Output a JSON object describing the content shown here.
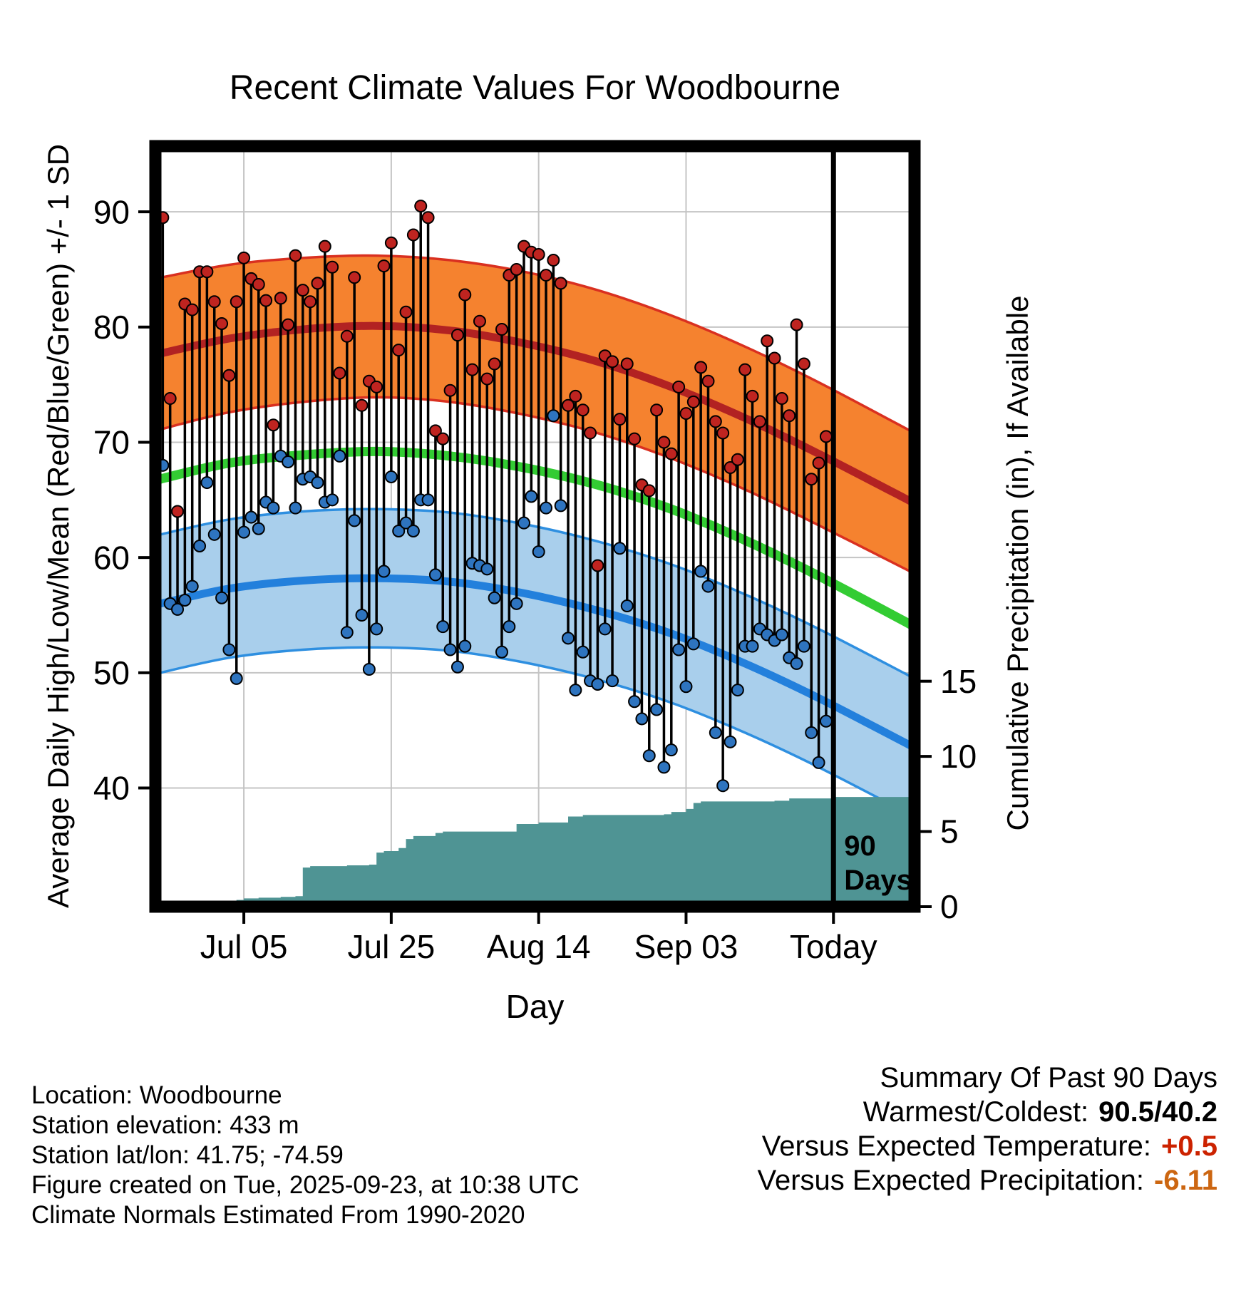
{
  "title": "Recent Climate Values For Woodbourne",
  "y_axis_label": "Average Daily High/Low/Mean (Red/Blue/Green) +/- 1 SD",
  "y2_axis_label": "Cumulative Precipitation (in), If Available",
  "x_axis_label": "Day",
  "footer": {
    "lines": [
      "Location: Woodbourne",
      "Station elevation: 433 m",
      "Station lat/lon: 41.75; -74.59",
      "Figure created on Tue, 2025-09-23, at 10:38 UTC",
      "Climate Normals Estimated From 1990-2020"
    ]
  },
  "summary": {
    "heading": "Summary Of Past 90 Days",
    "rows": [
      {
        "label": "Warmest/Coldest:",
        "value": "90.5/40.2",
        "color": "#000000"
      },
      {
        "label": "Versus Expected Temperature:",
        "value": "+0.5",
        "color": "#cc2200"
      },
      {
        "label": "Versus Expected Precipitation:",
        "value": "-6.11",
        "color": "#cc6611"
      }
    ]
  },
  "chart_data": {
    "type": "line",
    "title": "Recent Climate Values For Woodbourne",
    "xlabel": "Day",
    "ylabel": "Average Daily High/Low/Mean (Red/Blue/Green) +/- 1 SD",
    "y2label": "Cumulative Precipitation (in), If Available",
    "temp_axis": {
      "min": 29.7,
      "max": 95.7,
      "ticks": [
        40,
        50,
        60,
        70,
        80,
        90
      ]
    },
    "precip_axis": {
      "min": 0,
      "max": 50.6,
      "ticks": [
        0,
        5,
        10,
        15
      ]
    },
    "day_axis": {
      "max_day": 103,
      "today_day": 92,
      "ticks": [
        {
          "day": 12,
          "label": "Jul 05"
        },
        {
          "day": 32,
          "label": "Jul 25"
        },
        {
          "day": 52,
          "label": "Aug 14"
        },
        {
          "day": 72,
          "label": "Sep 03"
        },
        {
          "day": 92,
          "label": "Today"
        }
      ]
    },
    "annotation": {
      "lines": [
        "90",
        "Days"
      ]
    },
    "normals": {
      "days": [
        0,
        10,
        20,
        30,
        40,
        50,
        60,
        70,
        80,
        90,
        103
      ],
      "high_upper": [
        84.2,
        85.4,
        86.0,
        86.2,
        85.8,
        84.8,
        83.2,
        81.0,
        78.3,
        75.2,
        70.8
      ],
      "high_mean": [
        77.6,
        79.0,
        79.8,
        80.1,
        79.7,
        78.6,
        77.0,
        74.8,
        72.1,
        69.0,
        64.7
      ],
      "high_lower": [
        71.0,
        72.6,
        73.5,
        73.9,
        73.5,
        72.4,
        70.8,
        68.6,
        65.9,
        62.8,
        58.6
      ],
      "mean": [
        66.7,
        68.2,
        68.9,
        69.2,
        68.8,
        67.8,
        66.3,
        64.2,
        61.5,
        58.4,
        54.0
      ],
      "low_upper": [
        61.9,
        63.3,
        64.0,
        64.2,
        63.9,
        62.9,
        61.4,
        59.4,
        56.8,
        53.8,
        49.5
      ],
      "low_mean": [
        55.9,
        57.3,
        58.0,
        58.2,
        57.9,
        56.9,
        55.4,
        53.4,
        50.8,
        47.8,
        43.5
      ],
      "low_lower": [
        49.9,
        51.3,
        52.0,
        52.2,
        51.9,
        50.9,
        49.4,
        47.4,
        44.8,
        41.8,
        37.5
      ]
    },
    "daily": {
      "columns": [
        "date",
        "high",
        "low"
      ],
      "start_day": 1,
      "points": [
        [
          "Jun 24",
          89.5,
          68.0
        ],
        [
          "Jun 25",
          73.8,
          56.0
        ],
        [
          "Jun 26",
          64.0,
          55.5
        ],
        [
          "Jun 27",
          82.0,
          56.3
        ],
        [
          "Jun 28",
          81.5,
          57.5
        ],
        [
          "Jun 29",
          84.8,
          61.0
        ],
        [
          "Jun 30",
          84.8,
          66.5
        ],
        [
          "Jul 01",
          82.2,
          62.0
        ],
        [
          "Jul 02",
          80.3,
          56.5
        ],
        [
          "Jul 03",
          75.8,
          52.0
        ],
        [
          "Jul 04",
          82.2,
          49.5
        ],
        [
          "Jul 05",
          86.0,
          62.2
        ],
        [
          "Jul 06",
          84.2,
          63.5
        ],
        [
          "Jul 07",
          83.7,
          62.5
        ],
        [
          "Jul 08",
          82.3,
          64.8
        ],
        [
          "Jul 09",
          71.5,
          64.3
        ],
        [
          "Jul 10",
          82.5,
          68.8
        ],
        [
          "Jul 11",
          80.2,
          68.3
        ],
        [
          "Jul 12",
          86.2,
          64.3
        ],
        [
          "Jul 13",
          83.2,
          66.8
        ],
        [
          "Jul 14",
          82.2,
          67.0
        ],
        [
          "Jul 15",
          83.8,
          66.5
        ],
        [
          "Jul 16",
          87.0,
          64.8
        ],
        [
          "Jul 17",
          85.2,
          65.0
        ],
        [
          "Jul 18",
          76.0,
          68.8
        ],
        [
          "Jul 19",
          79.2,
          53.5
        ],
        [
          "Jul 20",
          84.3,
          63.2
        ],
        [
          "Jul 21",
          73.2,
          55.0
        ],
        [
          "Jul 22",
          75.3,
          50.3
        ],
        [
          "Jul 23",
          74.8,
          53.8
        ],
        [
          "Jul 24",
          85.3,
          58.8
        ],
        [
          "Jul 25",
          87.3,
          67.0
        ],
        [
          "Jul 26",
          78.0,
          62.3
        ],
        [
          "Jul 27",
          81.3,
          63.0
        ],
        [
          "Jul 28",
          88.0,
          62.3
        ],
        [
          "Jul 29",
          90.5,
          65.0
        ],
        [
          "Jul 30",
          89.5,
          65.0
        ],
        [
          "Jul 31",
          71.0,
          58.5
        ],
        [
          "Aug 01",
          70.3,
          54.0
        ],
        [
          "Aug 02",
          74.5,
          52.0
        ],
        [
          "Aug 03",
          79.3,
          50.5
        ],
        [
          "Aug 04",
          82.8,
          52.3
        ],
        [
          "Aug 05",
          76.3,
          59.5
        ],
        [
          "Aug 06",
          80.5,
          59.3
        ],
        [
          "Aug 07",
          75.5,
          59.0
        ],
        [
          "Aug 08",
          76.8,
          56.5
        ],
        [
          "Aug 09",
          79.8,
          51.8
        ],
        [
          "Aug 10",
          84.5,
          54.0
        ],
        [
          "Aug 11",
          85.0,
          56.0
        ],
        [
          "Aug 12",
          87.0,
          63.0
        ],
        [
          "Aug 13",
          86.5,
          65.3
        ],
        [
          "Aug 14",
          86.3,
          60.5
        ],
        [
          "Aug 15",
          84.5,
          64.3
        ],
        [
          "Aug 16",
          85.8,
          72.3
        ],
        [
          "Aug 17",
          83.8,
          64.5
        ],
        [
          "Aug 18",
          73.2,
          53.0
        ],
        [
          "Aug 19",
          74.0,
          48.5
        ],
        [
          "Aug 20",
          72.8,
          51.8
        ],
        [
          "Aug 21",
          70.8,
          49.3
        ],
        [
          "Aug 22",
          59.3,
          49.0
        ],
        [
          "Aug 23",
          77.5,
          53.8
        ],
        [
          "Aug 24",
          77.0,
          49.3
        ],
        [
          "Aug 25",
          72.0,
          60.8
        ],
        [
          "Aug 26",
          76.8,
          55.8
        ],
        [
          "Aug 27",
          70.3,
          47.5
        ],
        [
          "Aug 28",
          66.3,
          46.0
        ],
        [
          "Aug 29",
          65.8,
          42.8
        ],
        [
          "Aug 30",
          72.8,
          46.8
        ],
        [
          "Aug 31",
          70.0,
          41.8
        ],
        [
          "Sep 01",
          69.0,
          43.3
        ],
        [
          "Sep 02",
          74.8,
          52.0
        ],
        [
          "Sep 03",
          72.5,
          48.8
        ],
        [
          "Sep 04",
          73.5,
          52.5
        ],
        [
          "Sep 05",
          76.5,
          58.8
        ],
        [
          "Sep 06",
          75.3,
          57.5
        ],
        [
          "Sep 07",
          71.8,
          44.8
        ],
        [
          "Sep 08",
          70.8,
          40.2
        ],
        [
          "Sep 09",
          67.8,
          44.0
        ],
        [
          "Sep 10",
          68.5,
          48.5
        ],
        [
          "Sep 11",
          76.3,
          52.3
        ],
        [
          "Sep 12",
          74.0,
          52.3
        ],
        [
          "Sep 13",
          71.8,
          53.8
        ],
        [
          "Sep 14",
          78.8,
          53.3
        ],
        [
          "Sep 15",
          77.3,
          52.8
        ],
        [
          "Sep 16",
          73.8,
          53.3
        ],
        [
          "Sep 17",
          72.3,
          51.3
        ],
        [
          "Sep 18",
          80.2,
          50.8
        ],
        [
          "Sep 19",
          76.8,
          52.3
        ],
        [
          "Sep 20",
          66.8,
          44.8
        ],
        [
          "Sep 21",
          68.2,
          42.2
        ],
        [
          "Sep 22",
          70.5,
          45.8
        ]
      ]
    },
    "precip_cumulative": {
      "columns": [
        "day",
        "inches"
      ],
      "points": [
        [
          0,
          0
        ],
        [
          6,
          0
        ],
        [
          7,
          0.15
        ],
        [
          9,
          0.3
        ],
        [
          11,
          0.45
        ],
        [
          12,
          0.55
        ],
        [
          14,
          0.6
        ],
        [
          17,
          0.65
        ],
        [
          19,
          0.7
        ],
        [
          20,
          2.6
        ],
        [
          21,
          2.7
        ],
        [
          26,
          2.75
        ],
        [
          29,
          2.8
        ],
        [
          30,
          3.6
        ],
        [
          31,
          3.7
        ],
        [
          33,
          3.9
        ],
        [
          34,
          4.5
        ],
        [
          35,
          4.7
        ],
        [
          38,
          4.9
        ],
        [
          39,
          5.0
        ],
        [
          48,
          5.0
        ],
        [
          49,
          5.5
        ],
        [
          52,
          5.6
        ],
        [
          56,
          6.0
        ],
        [
          58,
          6.1
        ],
        [
          69,
          6.15
        ],
        [
          70,
          6.3
        ],
        [
          72,
          6.5
        ],
        [
          73,
          6.9
        ],
        [
          74,
          7.0
        ],
        [
          84,
          7.05
        ],
        [
          86,
          7.2
        ],
        [
          92,
          7.3
        ],
        [
          103,
          7.3
        ]
      ]
    },
    "colors": {
      "high_band_fill": "#F5822F",
      "high_edge": "#D93020",
      "high_mean_line": "#B22222",
      "mean_line": "#33CC33",
      "low_band_fill": "#A9CFEC",
      "low_edge": "#2E8FE0",
      "low_mean_line": "#2380DC",
      "precip_fill": "#4F9494",
      "high_dot": "#BF2420",
      "low_dot": "#2E74BF",
      "bar": "#000000",
      "grid": "#C4C4C4",
      "today_line": "#000000"
    }
  }
}
